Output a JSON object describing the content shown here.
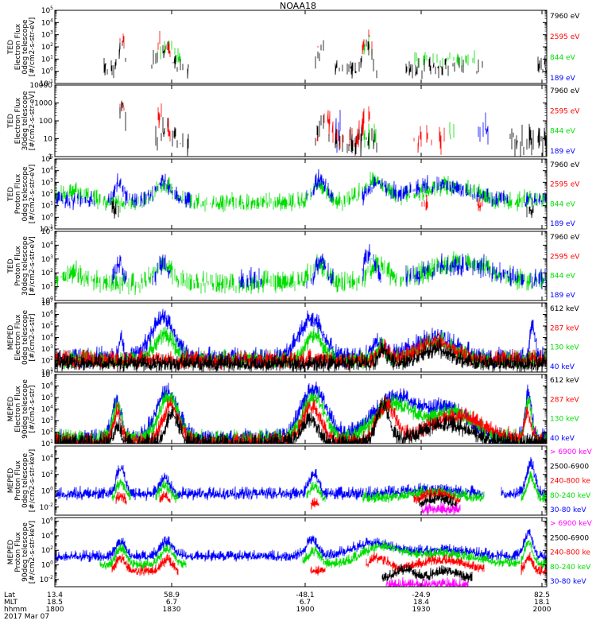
{
  "title": "NOAA18",
  "colors": {
    "black": "#000000",
    "red": "#ff0000",
    "green": "#00dd00",
    "blue": "#0000ff",
    "magenta": "#ff00ff"
  },
  "chart_data": [
    {
      "type": "line",
      "instrument": "TED",
      "ylabel": [
        "TED",
        "Electron Flux",
        "0deg telescope",
        "[#/cm2-s-str-eV]"
      ],
      "ticks": [
        {
          "e": -1
        },
        {
          "e": 0
        },
        {
          "e": 1
        },
        {
          "e": 2
        },
        {
          "e": 3
        },
        {
          "e": 4
        },
        {
          "e": 5
        }
      ],
      "ylim_exp": [
        -1,
        5
      ],
      "legend": [
        {
          "name": "7960 eV",
          "color": "black"
        },
        {
          "name": "2595 eV",
          "color": "red"
        },
        {
          "name": "844 eV",
          "color": "green"
        },
        {
          "name": "189 eV",
          "color": "blue"
        }
      ]
    },
    {
      "type": "line",
      "instrument": "TED",
      "ylabel": [
        "TED",
        "Electron Flux",
        "30deg telescope",
        "[#/cm2-s-str-eV]"
      ],
      "ticks": [
        {
          "t": "1",
          "v": 1
        },
        {
          "t": "10",
          "v": 10
        },
        {
          "t": "100",
          "v": 100
        },
        {
          "t": "1000",
          "v": 1000
        },
        {
          "t": "10000",
          "v": 10000
        }
      ],
      "ylim": [
        1,
        10000
      ],
      "legend": [
        {
          "name": "7960 eV",
          "color": "black"
        },
        {
          "name": "2595 eV",
          "color": "red"
        },
        {
          "name": "844 eV",
          "color": "green"
        },
        {
          "name": "189 eV",
          "color": "blue"
        }
      ]
    },
    {
      "type": "line",
      "instrument": "TED",
      "ylabel": [
        "TED",
        "Proton Flux",
        "0deg telescope",
        "[#/cm2-s-str-eV]"
      ],
      "ticks": [
        {
          "e": -1
        },
        {
          "e": 0
        },
        {
          "e": 1
        },
        {
          "e": 2
        },
        {
          "e": 3
        },
        {
          "e": 4
        },
        {
          "e": 5
        }
      ],
      "ylim_exp": [
        -1,
        5
      ],
      "legend": [
        {
          "name": "7960 eV",
          "color": "black"
        },
        {
          "name": "2595 eV",
          "color": "red"
        },
        {
          "name": "844 eV",
          "color": "green"
        },
        {
          "name": "189 eV",
          "color": "blue"
        }
      ]
    },
    {
      "type": "line",
      "instrument": "TED",
      "ylabel": [
        "TED",
        "Proton Flux",
        "30deg telescope",
        "[#/cm2-s-str-eV]"
      ],
      "ticks": [
        {
          "e": 0
        },
        {
          "e": 1
        },
        {
          "e": 2
        },
        {
          "e": 3
        },
        {
          "e": 4
        },
        {
          "e": 5
        }
      ],
      "ylim_exp": [
        0,
        5
      ],
      "legend": [
        {
          "name": "7960 eV",
          "color": "black"
        },
        {
          "name": "2595 eV",
          "color": "red"
        },
        {
          "name": "844 eV",
          "color": "green"
        },
        {
          "name": "189 eV",
          "color": "blue"
        }
      ]
    },
    {
      "type": "line",
      "instrument": "MEPED",
      "ylabel": [
        "MEPED",
        "Electron Flux",
        "0deg telescope",
        "[#/cm2-s-str]"
      ],
      "ticks": [
        {
          "e": 1
        },
        {
          "e": 2
        },
        {
          "e": 3
        },
        {
          "e": 4
        },
        {
          "e": 5
        },
        {
          "e": 6
        },
        {
          "e": 7
        }
      ],
      "ylim_exp": [
        1,
        7
      ],
      "legend": [
        {
          "name": "612 keV",
          "color": "black"
        },
        {
          "name": "287 keV",
          "color": "red"
        },
        {
          "name": "130 keV",
          "color": "green"
        },
        {
          "name": "40 keV",
          "color": "blue"
        }
      ]
    },
    {
      "type": "line",
      "instrument": "MEPED",
      "ylabel": [
        "MEPED",
        "Electron Flux",
        "90deg telescope",
        "[#/cm2-s-str]"
      ],
      "ticks": [
        {
          "e": 1
        },
        {
          "e": 2
        },
        {
          "e": 3
        },
        {
          "e": 4
        },
        {
          "e": 5
        },
        {
          "e": 6
        },
        {
          "e": 7
        }
      ],
      "ylim_exp": [
        1,
        7
      ],
      "legend": [
        {
          "name": "612 keV",
          "color": "black"
        },
        {
          "name": "287 keV",
          "color": "red"
        },
        {
          "name": "130 keV",
          "color": "green"
        },
        {
          "name": "40 keV",
          "color": "blue"
        }
      ]
    },
    {
      "type": "line",
      "instrument": "MEPED",
      "ylabel": [
        "MEPED",
        "Proton Flux",
        "0deg telescope",
        "[#/cm2-s-str-keV]"
      ],
      "ticks": [
        {
          "e": -2
        },
        {
          "e": 0
        },
        {
          "e": 2
        },
        {
          "e": 4
        }
      ],
      "ylim_exp": [
        -3,
        5.5
      ],
      "legend": [
        {
          "name": "> 6900 keV",
          "color": "magenta"
        },
        {
          "name": "2500-6900",
          "color": "black"
        },
        {
          "name": "240-800 ke",
          "color": "red"
        },
        {
          "name": "80-240 keV",
          "color": "green"
        },
        {
          "name": "30-80 keV",
          "color": "blue"
        }
      ]
    },
    {
      "type": "line",
      "instrument": "MEPED",
      "ylabel": [
        "MEPED",
        "Proton Flux",
        "90deg telescope",
        "[#/cm2-s-str-keV]"
      ],
      "ticks": [
        {
          "e": -2
        },
        {
          "e": 0
        },
        {
          "e": 2
        },
        {
          "e": 4
        },
        {
          "e": 6
        }
      ],
      "ylim_exp": [
        -3,
        6.5
      ],
      "legend": [
        {
          "name": "> 6900 keV",
          "color": "magenta"
        },
        {
          "name": "2500-6900",
          "color": "black"
        },
        {
          "name": "240-800 ke",
          "color": "red"
        },
        {
          "name": "80-240 keV",
          "color": "green"
        },
        {
          "name": "30-80 keV",
          "color": "blue"
        }
      ]
    }
  ],
  "time_axis": {
    "row_labels": [
      "Lat",
      "MLT",
      "hhmm"
    ],
    "date": "2017 Mar 07",
    "ticks": [
      {
        "hhmm": "1800",
        "lat": "13.4",
        "mlt": "18.5"
      },
      {
        "hhmm": "1830",
        "lat": "58.9",
        "mlt": "6.7"
      },
      {
        "hhmm": "1900",
        "lat": "-48.1",
        "mlt": "6.7"
      },
      {
        "hhmm": "1930",
        "lat": "-24.9",
        "mlt": "18.4"
      },
      {
        "hhmm": "2000",
        "lat": "82.5",
        "mlt": "18.1"
      }
    ]
  }
}
